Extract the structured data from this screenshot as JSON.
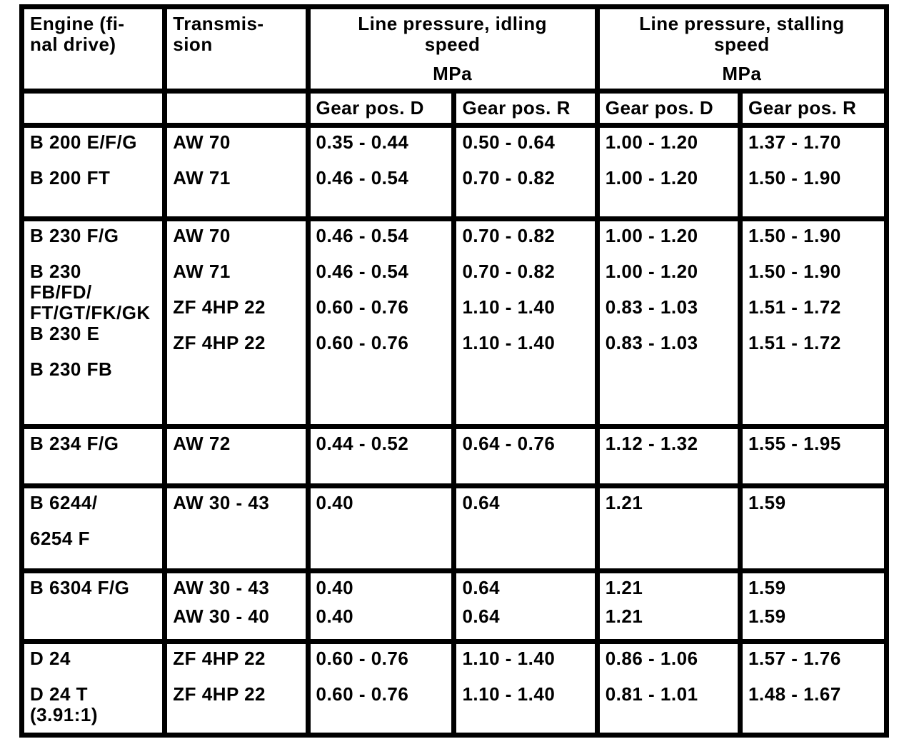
{
  "table": {
    "colors": {
      "grid": "#000000",
      "cell_background": "#ffffff",
      "text": "#000000"
    },
    "header": {
      "engine": [
        "Engine (fi-",
        "nal drive)"
      ],
      "transmission": [
        "Transmis-",
        "sion"
      ],
      "idling": {
        "lines": [
          "Line pressure, idling",
          "speed"
        ],
        "unit": "MPa"
      },
      "stalling": {
        "lines": [
          "Line pressure, stalling",
          "speed"
        ],
        "unit": "MPa"
      },
      "gear_d_idle": "Gear pos. D",
      "gear_r_idle": "Gear pos. R",
      "gear_d_stall": "Gear pos. D",
      "gear_r_stall": "Gear pos. R"
    },
    "groups": [
      {
        "rows": [
          {
            "engine": [
              "B 200 E/F/G"
            ],
            "transmission": [
              "AW 70"
            ],
            "idle_d": [
              "0.35 - 0.44"
            ],
            "idle_r": [
              "0.50 - 0.64"
            ],
            "stall_d": [
              "1.00 - 1.20"
            ],
            "stall_r": [
              "1.37 - 1.70"
            ]
          },
          {
            "engine": [
              "B 200 FT"
            ],
            "transmission": [
              "AW 71"
            ],
            "idle_d": [
              "0.46 - 0.54"
            ],
            "idle_r": [
              "0.70 - 0.82"
            ],
            "stall_d": [
              "1.00 - 1.20"
            ],
            "stall_r": [
              "1.50 - 1.90"
            ]
          }
        ]
      },
      {
        "rows": [
          {
            "engine": [
              "B 230 F/G"
            ],
            "transmission": [
              "AW 70"
            ],
            "idle_d": [
              "0.46 - 0.54"
            ],
            "idle_r": [
              "0.70 - 0.82"
            ],
            "stall_d": [
              "1.00 - 1.20"
            ],
            "stall_r": [
              "1.50 - 1.90"
            ]
          },
          {
            "engine": [
              "B 230",
              "FB/FD/",
              "FT/GT/FK/GK"
            ],
            "transmission": [
              "AW 71"
            ],
            "idle_d": [
              "0.46 - 0.54"
            ],
            "idle_r": [
              "0.70 - 0.82"
            ],
            "stall_d": [
              "1.00 - 1.20"
            ],
            "stall_r": [
              "1.50 - 1.90"
            ]
          },
          {
            "engine": [
              "B 230 E"
            ],
            "transmission": [
              "ZF 4HP 22"
            ],
            "idle_d": [
              "0.60 - 0.76"
            ],
            "idle_r": [
              "1.10 - 1.40"
            ],
            "stall_d": [
              "0.83 - 1.03"
            ],
            "stall_r": [
              "1.51 - 1.72"
            ]
          },
          {
            "engine": [
              "B 230 FB"
            ],
            "transmission": [
              "ZF 4HP 22"
            ],
            "idle_d": [
              "0.60 - 0.76"
            ],
            "idle_r": [
              "1.10 - 1.40"
            ],
            "stall_d": [
              "0.83 - 1.03"
            ],
            "stall_r": [
              "1.51 - 1.72"
            ]
          }
        ]
      },
      {
        "rows": [
          {
            "engine": [
              "B 234 F/G"
            ],
            "transmission": [
              "AW 72"
            ],
            "idle_d": [
              "0.44 - 0.52"
            ],
            "idle_r": [
              "0.64 - 0.76"
            ],
            "stall_d": [
              "1.12 - 1.32"
            ],
            "stall_r": [
              "1.55 - 1.95"
            ]
          }
        ]
      },
      {
        "rows": [
          {
            "engine": [
              "B 6244/"
            ],
            "transmission": [
              "AW 30 - 43"
            ],
            "idle_d": [
              "0.40"
            ],
            "idle_r": [
              "0.64"
            ],
            "stall_d": [
              "1.21"
            ],
            "stall_r": [
              "1.59"
            ]
          },
          {
            "engine": [
              "6254 F"
            ],
            "transmission": [],
            "idle_d": [],
            "idle_r": [],
            "stall_d": [],
            "stall_r": []
          }
        ]
      },
      {
        "rows": [
          {
            "engine": [
              "B 6304 F/G"
            ],
            "transmission": [
              "AW 30 - 43"
            ],
            "idle_d": [
              "0.40"
            ],
            "idle_r": [
              "0.64"
            ],
            "stall_d": [
              "1.21"
            ],
            "stall_r": [
              "1.59"
            ]
          },
          {
            "engine": [],
            "transmission": [
              "AW 30 - 40"
            ],
            "idle_d": [
              "0.40"
            ],
            "idle_r": [
              "0.64"
            ],
            "stall_d": [
              "1.21"
            ],
            "stall_r": [
              "1.59"
            ]
          }
        ]
      },
      {
        "rows": [
          {
            "engine": [
              "D 24"
            ],
            "transmission": [
              "ZF 4HP 22"
            ],
            "idle_d": [
              "0.60 - 0.76"
            ],
            "idle_r": [
              "1.10 - 1.40"
            ],
            "stall_d": [
              "0.86 - 1.06"
            ],
            "stall_r": [
              "1.57 - 1.76"
            ]
          },
          {
            "engine": [
              "D 24 T",
              "(3.91:1)"
            ],
            "transmission": [
              "ZF 4HP 22"
            ],
            "idle_d": [
              "0.60 - 0.76"
            ],
            "idle_r": [
              "1.10 - 1.40"
            ],
            "stall_d": [
              "0.81 - 1.01"
            ],
            "stall_r": [
              "1.48 - 1.67"
            ]
          }
        ]
      }
    ]
  }
}
